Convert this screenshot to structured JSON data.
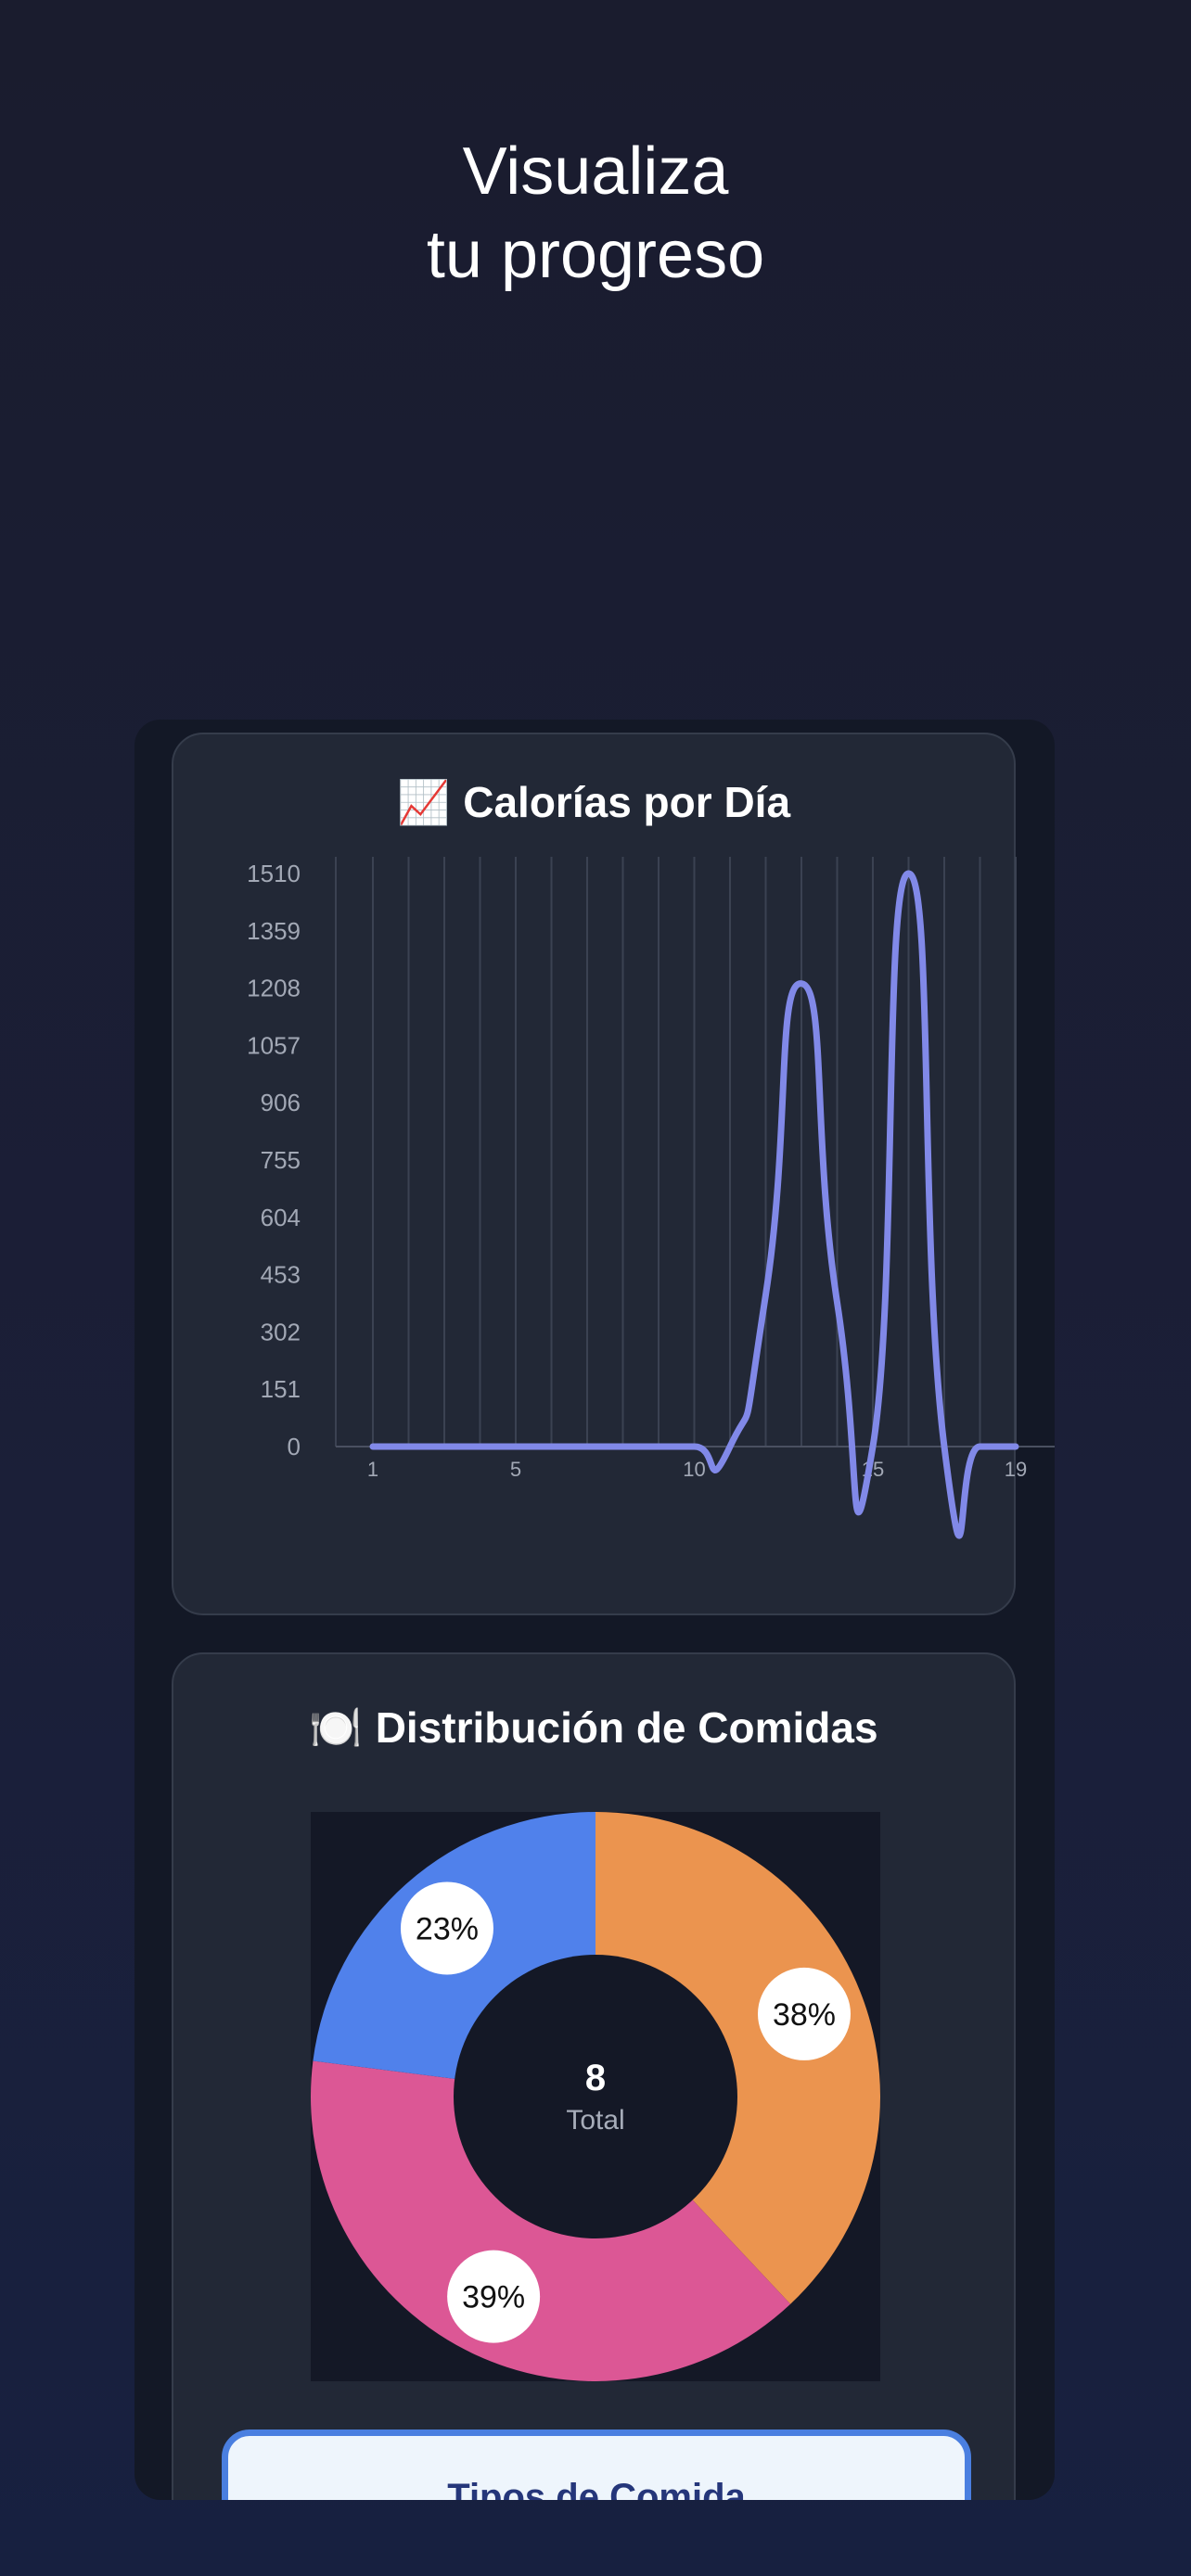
{
  "headline": {
    "line1": "Visualiza",
    "line2": "tu progreso"
  },
  "calories_card": {
    "emoji": "📈",
    "title": "Calorías por Día"
  },
  "meals_card": {
    "emoji": "🍽️",
    "title": "Distribución de Comidas"
  },
  "types_button": {
    "label": "Tipos de Comida"
  },
  "colors": {
    "line": "#8189e8",
    "orange": "#eb944f",
    "pink": "#dc5795",
    "blue": "#5081eb",
    "donut_hole": "#141826"
  },
  "chart_data": [
    {
      "type": "line",
      "title": "Calorías por Día",
      "x": [
        1,
        2,
        3,
        4,
        5,
        6,
        7,
        8,
        9,
        10,
        11,
        12,
        13,
        14,
        15,
        16,
        17,
        18,
        19
      ],
      "xticks": [
        1,
        5,
        10,
        15,
        19
      ],
      "yticks": [
        0,
        151,
        302,
        453,
        604,
        755,
        906,
        1057,
        1208,
        1359,
        1510
      ],
      "ylim": [
        0,
        1510
      ],
      "series": [
        {
          "values": [
            0,
            0,
            0,
            0,
            0,
            0,
            0,
            0,
            0,
            0,
            0,
            400,
            1220,
            380,
            0,
            1510,
            0,
            0,
            0
          ]
        }
      ],
      "grid": "vertical"
    },
    {
      "type": "pie",
      "title": "Distribución de Comidas",
      "center_value": "8",
      "center_label": "Total",
      "slices": [
        {
          "value": 38,
          "label": "38%",
          "color": "#eb944f"
        },
        {
          "value": 39,
          "label": "39%",
          "color": "#dc5795"
        },
        {
          "value": 23,
          "label": "23%",
          "color": "#5081eb"
        }
      ]
    }
  ]
}
